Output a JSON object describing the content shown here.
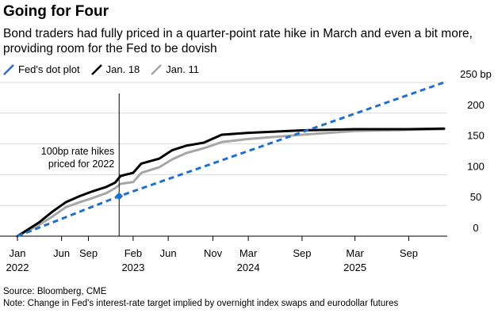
{
  "header": {
    "title": "Going for Four",
    "subtitle": "Bond traders had fully priced in a quarter-point rate hike in March and even a bit more, providing room for the Fed to be dovish"
  },
  "footer": {
    "source": "Source: Bloomberg, CME",
    "note": "Note: Change in Fed's interest-rate target implied by overnight index swaps and eurodollar futures"
  },
  "colors": {
    "dot_plot": "#1f6fd1",
    "jan18": "#000000",
    "jan11": "#a6a6a6",
    "grid": "#d9d9d9"
  },
  "chart_data": {
    "type": "line",
    "title": "Going for Four",
    "ylabel": "",
    "y_unit": "bp",
    "ylim": [
      0,
      250
    ],
    "yticks": [
      {
        "value": 0,
        "label": "0"
      },
      {
        "value": 50,
        "label": "50"
      },
      {
        "value": 100,
        "label": "100"
      },
      {
        "value": 150,
        "label": "150"
      },
      {
        "value": 200,
        "label": "200"
      },
      {
        "value": 250,
        "label": "250 bp"
      }
    ],
    "xlim": [
      "2022-01-01",
      "2025-12-31"
    ],
    "xticks": [
      {
        "date": "2022-01-01",
        "label": "Jan",
        "year": "2022"
      },
      {
        "date": "2022-06-01",
        "label": "Jun",
        "year": ""
      },
      {
        "date": "2022-09-01",
        "label": "Sep",
        "year": ""
      },
      {
        "date": "2023-02-01",
        "label": "Feb",
        "year": "2023"
      },
      {
        "date": "2023-06-01",
        "label": "Jun",
        "year": ""
      },
      {
        "date": "2023-11-01",
        "label": "Nov",
        "year": ""
      },
      {
        "date": "2024-03-01",
        "label": "Mar",
        "year": "2024"
      },
      {
        "date": "2024-09-01",
        "label": "Sep",
        "year": ""
      },
      {
        "date": "2025-03-01",
        "label": "Mar",
        "year": "2025"
      },
      {
        "date": "2025-09-01",
        "label": "Sep",
        "year": ""
      }
    ],
    "legend": "top-left",
    "series": [
      {
        "name": "Fed's dot plot",
        "style": "dashed",
        "color": "#1f6fd1",
        "points": [
          [
            "2022-01-01",
            0
          ],
          [
            "2022-12-15",
            65
          ],
          [
            "2025-12-31",
            250
          ]
        ]
      },
      {
        "name": "Jan. 18",
        "style": "solid",
        "color": "#000000",
        "points": [
          [
            "2022-01-01",
            0
          ],
          [
            "2022-03-15",
            22
          ],
          [
            "2022-05-01",
            40
          ],
          [
            "2022-06-15",
            55
          ],
          [
            "2022-08-01",
            65
          ],
          [
            "2022-09-15",
            73
          ],
          [
            "2022-11-01",
            80
          ],
          [
            "2022-12-01",
            87
          ],
          [
            "2022-12-20",
            98
          ],
          [
            "2023-02-01",
            103
          ],
          [
            "2023-03-01",
            118
          ],
          [
            "2023-05-01",
            126
          ],
          [
            "2023-06-15",
            140
          ],
          [
            "2023-08-01",
            147
          ],
          [
            "2023-10-01",
            152
          ],
          [
            "2023-12-01",
            165
          ],
          [
            "2024-03-01",
            168
          ],
          [
            "2024-09-01",
            172
          ],
          [
            "2025-03-01",
            174
          ],
          [
            "2025-09-01",
            174
          ],
          [
            "2025-12-31",
            175
          ]
        ]
      },
      {
        "name": "Jan. 11",
        "style": "solid",
        "color": "#a6a6a6",
        "points": [
          [
            "2022-01-01",
            0
          ],
          [
            "2022-03-15",
            18
          ],
          [
            "2022-05-01",
            32
          ],
          [
            "2022-06-15",
            47
          ],
          [
            "2022-08-01",
            55
          ],
          [
            "2022-09-15",
            62
          ],
          [
            "2022-11-01",
            70
          ],
          [
            "2022-12-01",
            78
          ],
          [
            "2022-12-20",
            85
          ],
          [
            "2023-02-01",
            88
          ],
          [
            "2023-03-01",
            103
          ],
          [
            "2023-05-01",
            112
          ],
          [
            "2023-06-15",
            125
          ],
          [
            "2023-08-01",
            135
          ],
          [
            "2023-10-01",
            143
          ],
          [
            "2023-12-01",
            153
          ],
          [
            "2024-03-01",
            158
          ],
          [
            "2024-09-01",
            165
          ],
          [
            "2025-03-01",
            171
          ],
          [
            "2025-09-01",
            173
          ],
          [
            "2025-12-31",
            174
          ]
        ]
      }
    ],
    "annotations": [
      {
        "text_lines": [
          "100bp rate hikes",
          "priced for 2022"
        ],
        "date": "2022-12-15",
        "value": 65
      }
    ]
  }
}
